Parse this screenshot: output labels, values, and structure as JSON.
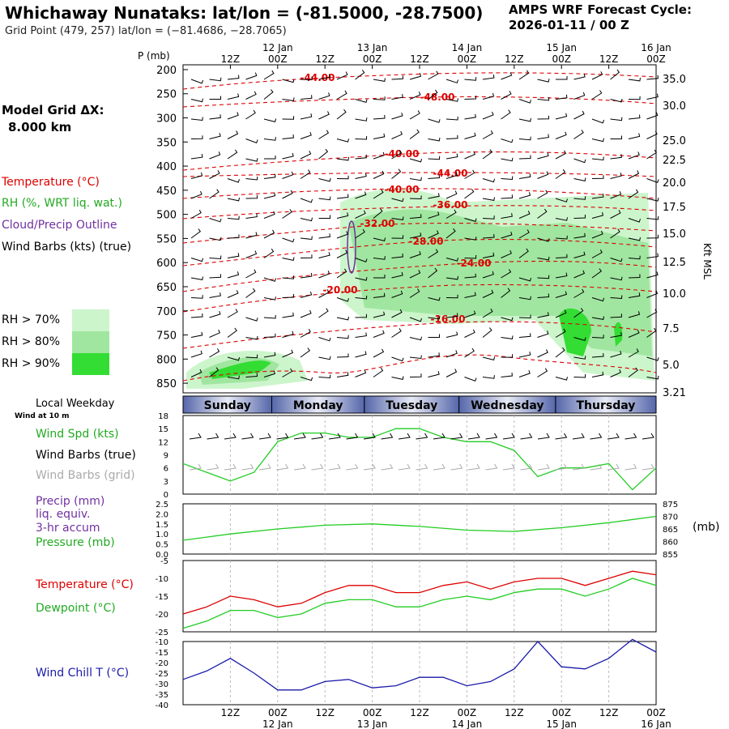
{
  "header": {
    "title": "Whichaway Nunataks:  lat/lon = (-81.5000, -28.7500)",
    "subtitle": "Grid Point (479, 257) lat/lon = (−81.4686, −28.7065)",
    "cycle_title": "AMPS WRF Forecast Cycle:",
    "cycle_value": "2026-01-11 / 00  Z"
  },
  "model_grid": {
    "label": "Model Grid ΔX:",
    "value": "8.000 km"
  },
  "legend": {
    "temperature": "Temperature (°C)",
    "rh": "RH (%, WRT liq. wat.)",
    "cloud": "Cloud/Precip Outline",
    "barbs": "Wind Barbs (kts) (true)",
    "rh70": "RH > 70%",
    "rh80": "RH > 80%",
    "rh90": "RH > 90%",
    "colors": {
      "rh70": "#ccf5cc",
      "rh80": "#a0e6a0",
      "rh90": "#33dd33",
      "temperature": "#dd0000",
      "cloud": "#7030a0"
    }
  },
  "time_axis": {
    "top_hours": [
      "12Z",
      "00Z",
      "12Z",
      "00Z",
      "12Z",
      "00Z",
      "12Z",
      "00Z",
      "12Z",
      "00Z"
    ],
    "dates": [
      "12 Jan",
      "13 Jan",
      "14 Jan",
      "15 Jan",
      "16 Jan"
    ],
    "bottom_hours": [
      "12Z",
      "00Z",
      "12Z",
      "00Z",
      "12Z",
      "00Z",
      "12Z",
      "00Z",
      "12Z",
      "00Z"
    ]
  },
  "weekday": {
    "label": "Local Weekday",
    "sublabel": "Wind at 10 m",
    "days": [
      "Sunday",
      "Monday",
      "Tuesday",
      "Wednesday",
      "Thursday"
    ]
  },
  "panels": {
    "wind": {
      "l1": "Wind Spd (kts)",
      "l2": "Wind Barbs (true)",
      "l3": "Wind Barbs (grid)"
    },
    "precip": {
      "l1": "Precip (mm)",
      "l2": "liq. equiv.",
      "l3": "3-hr accum",
      "l4": "Pressure (mb)",
      "unit": "(mb)"
    },
    "temp": {
      "l1": "Temperature (°C)",
      "l2": "Dewpoint (°C)"
    },
    "chill": {
      "l1": "Wind Chill T (°C)"
    }
  },
  "chart_data": [
    {
      "type": "heatmap",
      "ylabel": "P (mb)",
      "y_ticks": [
        "200",
        "250",
        "300",
        "350",
        "400",
        "450",
        "500",
        "550",
        "600",
        "650",
        "700",
        "750",
        "800",
        "850"
      ],
      "right_ticks": [
        "35.0",
        "30.0",
        "25.0",
        "22.5",
        "20.0",
        "17.5",
        "15.0",
        "12.5",
        "10.0",
        "7.5",
        "5.0",
        "3.21"
      ],
      "right_label": "Kft MSL",
      "isotherm_labels": [
        "-44.00",
        "-48.00",
        "-40.00",
        "-44.00",
        "-40.00",
        "-36.00",
        "-32.00",
        "-28.00",
        "-24.00",
        "-20.00",
        "-16.00"
      ]
    },
    {
      "type": "line",
      "series": [
        {
          "name": "Wind Spd (kts)",
          "x": [
            0,
            6,
            12,
            18,
            24,
            30,
            36,
            42,
            48,
            54,
            60,
            66,
            72,
            78,
            84,
            90,
            96,
            102,
            108,
            114,
            120
          ],
          "values": [
            7,
            5,
            3,
            5,
            12,
            14,
            14,
            13,
            13,
            15,
            15,
            13,
            12,
            12,
            10,
            4,
            6,
            6,
            7,
            1,
            6
          ]
        }
      ],
      "y_ticks": [
        "18",
        "15",
        "12",
        "9",
        "6",
        "3",
        "0"
      ]
    },
    {
      "type": "line",
      "series": [
        {
          "name": "Pressure (mb)",
          "x": [
            0,
            12,
            24,
            36,
            48,
            60,
            72,
            84,
            96,
            108,
            120
          ],
          "values": [
            860.5,
            863,
            865,
            866.5,
            867,
            866,
            864.5,
            864,
            865.5,
            867.5,
            870
          ]
        }
      ],
      "y_ticks": [
        "2.5",
        "2.0",
        "1.5",
        "1.0",
        "0.5",
        "0.0"
      ],
      "right_ticks": [
        "875",
        "870",
        "865",
        "860",
        "855"
      ]
    },
    {
      "type": "line",
      "series": [
        {
          "name": "Temperature (°C)",
          "x": [
            0,
            6,
            12,
            18,
            24,
            30,
            36,
            42,
            48,
            54,
            60,
            66,
            72,
            78,
            84,
            90,
            96,
            102,
            108,
            114,
            120
          ],
          "values": [
            -20,
            -18,
            -15,
            -16,
            -18,
            -17,
            -14,
            -12,
            -12,
            -14,
            -14,
            -12,
            -11,
            -13,
            -11,
            -10,
            -10,
            -12,
            -10,
            -8,
            -9
          ]
        },
        {
          "name": "Dewpoint (°C)",
          "x": [
            0,
            6,
            12,
            18,
            24,
            30,
            36,
            42,
            48,
            54,
            60,
            66,
            72,
            78,
            84,
            90,
            96,
            102,
            108,
            114,
            120
          ],
          "values": [
            -24,
            -22,
            -19,
            -19,
            -21,
            -20,
            -17,
            -16,
            -16,
            -18,
            -18,
            -16,
            -15,
            -16,
            -14,
            -13,
            -13,
            -15,
            -13,
            -10,
            -12
          ]
        }
      ],
      "y_ticks": [
        "-5",
        "-10",
        "-15",
        "-20",
        "-25"
      ]
    },
    {
      "type": "line",
      "series": [
        {
          "name": "Wind Chill T (°C)",
          "x": [
            0,
            6,
            12,
            18,
            24,
            30,
            36,
            42,
            48,
            54,
            60,
            66,
            72,
            78,
            84,
            90,
            96,
            102,
            108,
            114,
            120
          ],
          "values": [
            -28,
            -24,
            -18,
            -25,
            -33,
            -33,
            -29,
            -28,
            -32,
            -31,
            -27,
            -27,
            -31,
            -29,
            -23,
            -10,
            -22,
            -23,
            -18,
            -9,
            -15
          ]
        }
      ],
      "y_ticks": [
        "-10",
        "-15",
        "-20",
        "-25",
        "-30",
        "-35",
        "-40"
      ]
    }
  ]
}
